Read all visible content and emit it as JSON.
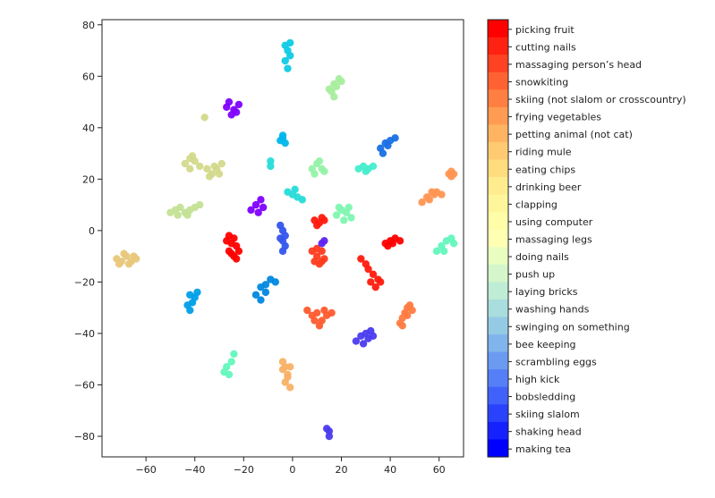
{
  "chart_data": {
    "type": "scatter",
    "title": "",
    "xlabel": "",
    "ylabel": "",
    "xlim": [
      -78,
      70
    ],
    "ylim": [
      -88,
      82
    ],
    "xticks": [
      -60,
      -40,
      -20,
      0,
      20,
      40,
      60
    ],
    "yticks": [
      -80,
      -60,
      -40,
      -20,
      0,
      20,
      40,
      60,
      80
    ],
    "xtick_labels": [
      "−60",
      "−40",
      "−20",
      "0",
      "20",
      "40",
      "60"
    ],
    "ytick_labels": [
      "−80",
      "−60",
      "−40",
      "−20",
      "0",
      "20",
      "40",
      "60",
      "80"
    ],
    "grid": false,
    "legend": "colorbar-right",
    "colormap": "rainbow",
    "classes": [
      "picking fruit",
      "cutting nails",
      "massaging person’s head",
      "snowkiting",
      "skiing (not slalom or crosscountry)",
      "frying vegetables",
      "petting animal (not cat)",
      "riding mule",
      "eating chips",
      "drinking beer",
      "clapping",
      "using computer",
      "massaging legs",
      "doing nails",
      "push up",
      "laying bricks",
      "washing hands",
      "swinging on something",
      "bee keeping",
      "scrambling eggs",
      "high kick",
      "bobsledding",
      "skiing slalom",
      "shaking head",
      "making tea"
    ],
    "clusters": [
      {
        "class": "picking fruit",
        "color": "#ff0000",
        "points": [
          [
            -27,
            -4
          ],
          [
            -26,
            -8
          ],
          [
            -25,
            -5
          ],
          [
            -24,
            -10
          ],
          [
            -23,
            -6
          ],
          [
            -26,
            -2
          ],
          [
            -24,
            -3
          ],
          [
            -22,
            -8
          ],
          [
            -25,
            -9
          ],
          [
            -23,
            -11
          ]
        ]
      },
      {
        "class": "picking fruit",
        "color": "#ff0000",
        "points": [
          [
            38,
            -5
          ],
          [
            40,
            -4
          ],
          [
            42,
            -3
          ],
          [
            44,
            -4
          ],
          [
            39,
            -6
          ],
          [
            41,
            -5
          ]
        ]
      },
      {
        "class": "cutting nails",
        "color": "#ff1a0d",
        "points": [
          [
            28,
            -11
          ],
          [
            30,
            -13
          ],
          [
            31,
            -15
          ],
          [
            33,
            -17
          ],
          [
            35,
            -19
          ],
          [
            32,
            -20
          ],
          [
            34,
            -22
          ],
          [
            36,
            -20
          ]
        ]
      },
      {
        "class": "cutting nails",
        "color": "#ff1a0d",
        "points": [
          [
            9,
            4
          ],
          [
            11,
            3
          ],
          [
            13,
            4
          ],
          [
            10,
            2
          ],
          [
            12,
            5
          ]
        ]
      },
      {
        "class": "massaging person’s head",
        "color": "#ff3b1e",
        "points": [
          [
            8,
            -8
          ],
          [
            10,
            -10
          ],
          [
            12,
            -8
          ],
          [
            9,
            -12
          ],
          [
            11,
            -13
          ],
          [
            13,
            -11
          ],
          [
            10,
            -7
          ],
          [
            12,
            -12
          ]
        ]
      },
      {
        "class": "snowkiting",
        "color": "#ff5a2e",
        "points": [
          [
            6,
            -31
          ],
          [
            8,
            -33
          ],
          [
            10,
            -32
          ],
          [
            12,
            -35
          ],
          [
            14,
            -33
          ],
          [
            9,
            -35
          ],
          [
            11,
            -37
          ],
          [
            13,
            -31
          ],
          [
            16,
            -32
          ]
        ]
      },
      {
        "class": "skiing (not slalom or crosscountry)",
        "color": "#ff7b40",
        "points": [
          [
            44,
            -36
          ],
          [
            45,
            -34
          ],
          [
            46,
            -32
          ],
          [
            47,
            -30
          ],
          [
            48,
            -29
          ],
          [
            45,
            -37
          ],
          [
            47,
            -33
          ],
          [
            49,
            -31
          ]
        ]
      },
      {
        "class": "frying vegetables",
        "color": "#ff9552",
        "points": [
          [
            53,
            11
          ],
          [
            55,
            13
          ],
          [
            57,
            15
          ],
          [
            59,
            15
          ],
          [
            61,
            14
          ],
          [
            56,
            12
          ],
          [
            58,
            14
          ]
        ]
      },
      {
        "class": "frying vegetables",
        "color": "#ff9552",
        "points": [
          [
            64,
            22
          ],
          [
            65,
            23
          ],
          [
            66,
            22
          ],
          [
            65,
            21
          ]
        ]
      },
      {
        "class": "petting animal (not cat)",
        "color": "#f9b166",
        "points": [
          [
            -4,
            -51
          ],
          [
            -3,
            -53
          ],
          [
            -2,
            -56
          ],
          [
            -3,
            -59
          ],
          [
            -1,
            -61
          ],
          [
            -2,
            -57
          ],
          [
            -4,
            -54
          ],
          [
            -1,
            -53
          ]
        ]
      },
      {
        "class": "riding mule",
        "color": "#e8c77a",
        "points": [
          [
            -72,
            -11
          ],
          [
            -70,
            -12
          ],
          [
            -68,
            -10
          ],
          [
            -66,
            -12
          ],
          [
            -64,
            -11
          ],
          [
            -67,
            -13
          ],
          [
            -69,
            -9
          ],
          [
            -65,
            -10
          ],
          [
            -71,
            -13
          ]
        ]
      },
      {
        "class": "eating chips",
        "color": "#d3d98a",
        "points": [
          [
            -44,
            26
          ],
          [
            -42,
            28
          ],
          [
            -40,
            27
          ],
          [
            -42,
            24
          ],
          [
            -38,
            25
          ],
          [
            -41,
            29
          ]
        ]
      },
      {
        "class": "eating chips",
        "color": "#d3d98a",
        "points": [
          [
            -35,
            24
          ],
          [
            -33,
            22
          ],
          [
            -31,
            24
          ],
          [
            -29,
            26
          ],
          [
            -34,
            21
          ],
          [
            -30,
            22
          ],
          [
            -32,
            25
          ]
        ]
      },
      {
        "class": "eating chips",
        "color": "#d3d98a",
        "points": [
          [
            -36,
            44
          ]
        ]
      },
      {
        "class": "drinking beer",
        "color": "#c4e295",
        "points": [
          [
            -50,
            7
          ],
          [
            -48,
            8
          ],
          [
            -46,
            9
          ],
          [
            -44,
            7
          ],
          [
            -42,
            8
          ],
          [
            -40,
            9
          ],
          [
            -38,
            10
          ],
          [
            -47,
            6
          ],
          [
            -43,
            6
          ]
        ]
      },
      {
        "class": "clapping",
        "color": "#a8ed9e",
        "points": [
          [
            15,
            55
          ],
          [
            17,
            57
          ],
          [
            19,
            59
          ],
          [
            16,
            54
          ],
          [
            18,
            56
          ],
          [
            20,
            58
          ],
          [
            17,
            52
          ]
        ]
      },
      {
        "class": "using computer",
        "color": "#95f2a8",
        "points": [
          [
            8,
            24
          ],
          [
            10,
            26
          ],
          [
            12,
            24
          ],
          [
            9,
            22
          ],
          [
            11,
            27
          ],
          [
            13,
            23
          ]
        ]
      },
      {
        "class": "massaging legs",
        "color": "#7ff6b1",
        "points": [
          [
            18,
            6
          ],
          [
            20,
            8
          ],
          [
            22,
            7
          ],
          [
            24,
            5
          ],
          [
            19,
            9
          ],
          [
            21,
            4
          ],
          [
            23,
            9
          ]
        ]
      },
      {
        "class": "doing nails",
        "color": "#62f7bd",
        "points": [
          [
            59,
            -8
          ],
          [
            61,
            -6
          ],
          [
            63,
            -4
          ],
          [
            65,
            -3
          ],
          [
            66,
            -5
          ],
          [
            62,
            -8
          ]
        ]
      },
      {
        "class": "doing nails",
        "color": "#62f7bd",
        "points": [
          [
            -27,
            -53
          ],
          [
            -25,
            -51
          ],
          [
            -24,
            -48
          ],
          [
            -28,
            -55
          ],
          [
            -26,
            -56
          ]
        ]
      },
      {
        "class": "push up",
        "color": "#44edcd",
        "points": [
          [
            27,
            24
          ],
          [
            29,
            25
          ],
          [
            31,
            24
          ],
          [
            33,
            25
          ],
          [
            30,
            23
          ]
        ]
      },
      {
        "class": "laying bricks",
        "color": "#26dcd9",
        "points": [
          [
            -2,
            15
          ],
          [
            0,
            14
          ],
          [
            2,
            13
          ],
          [
            4,
            12
          ],
          [
            1,
            16
          ]
        ]
      },
      {
        "class": "laying bricks",
        "color": "#26dcd9",
        "points": [
          [
            -9,
            27
          ],
          [
            -9,
            25
          ]
        ]
      },
      {
        "class": "washing hands",
        "color": "#0fcbe5",
        "points": [
          [
            -3,
            72
          ],
          [
            -2,
            70
          ],
          [
            -1,
            73
          ],
          [
            -3,
            66
          ],
          [
            -2,
            63
          ],
          [
            -1,
            68
          ]
        ]
      },
      {
        "class": "swinging on something",
        "color": "#02b6eb",
        "points": [
          [
            -5,
            35
          ],
          [
            -4,
            37
          ],
          [
            -3,
            34
          ],
          [
            -4,
            36
          ]
        ]
      },
      {
        "class": "bee keeping",
        "color": "#009fe8",
        "points": [
          [
            -42,
            -25
          ],
          [
            -41,
            -28
          ],
          [
            -42,
            -31
          ],
          [
            -40,
            -26
          ],
          [
            -43,
            -29
          ],
          [
            -39,
            -24
          ]
        ]
      },
      {
        "class": "scrambling eggs",
        "color": "#0088e0",
        "points": [
          [
            -15,
            -25
          ],
          [
            -13,
            -22
          ],
          [
            -11,
            -21
          ],
          [
            -9,
            -19
          ],
          [
            -7,
            -20
          ],
          [
            -13,
            -27
          ],
          [
            -11,
            -24
          ]
        ]
      },
      {
        "class": "high kick",
        "color": "#1970e4",
        "points": [
          [
            36,
            32
          ],
          [
            38,
            34
          ],
          [
            40,
            35
          ],
          [
            42,
            36
          ],
          [
            37,
            30
          ],
          [
            39,
            33
          ]
        ]
      },
      {
        "class": "bobsledding",
        "color": "#3355ec",
        "points": [
          [
            -5,
            2
          ],
          [
            -4,
            0
          ],
          [
            -3,
            -2
          ],
          [
            -4,
            -4
          ],
          [
            -3,
            -6
          ],
          [
            -4,
            -8
          ],
          [
            -5,
            -3
          ]
        ]
      },
      {
        "class": "skiing slalom",
        "color": "#4a3bef",
        "points": [
          [
            26,
            -43
          ],
          [
            28,
            -41
          ],
          [
            30,
            -40
          ],
          [
            32,
            -39
          ],
          [
            29,
            -44
          ],
          [
            31,
            -42
          ],
          [
            33,
            -41
          ]
        ]
      },
      {
        "class": "skiing slalom",
        "color": "#4a3bef",
        "points": [
          [
            14,
            -77
          ],
          [
            15,
            -78
          ],
          [
            15,
            -80
          ]
        ]
      },
      {
        "class": "shaking head",
        "color": "#5e23f2",
        "points": [
          [
            12,
            -5
          ],
          [
            13,
            -4
          ]
        ]
      },
      {
        "class": "making tea",
        "color": "#7f00ff",
        "points": [
          [
            -27,
            48
          ],
          [
            -26,
            50
          ],
          [
            -24,
            47
          ],
          [
            -22,
            49
          ],
          [
            -25,
            45
          ],
          [
            -23,
            46
          ]
        ]
      },
      {
        "class": "making tea",
        "color": "#7f00ff",
        "points": [
          [
            -17,
            8
          ],
          [
            -15,
            10
          ],
          [
            -13,
            12
          ],
          [
            -12,
            9
          ],
          [
            -14,
            7
          ]
        ]
      }
    ]
  }
}
